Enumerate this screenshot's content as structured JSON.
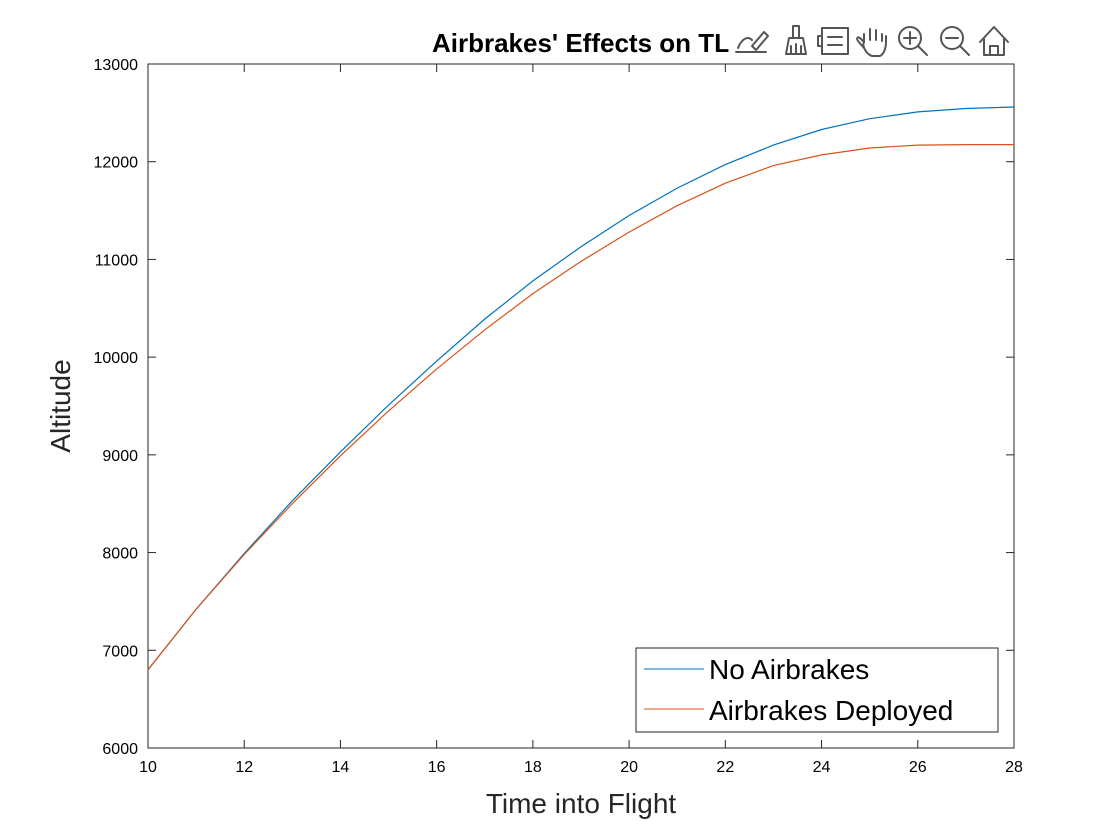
{
  "chart_data": {
    "type": "line",
    "title": "Airbrakes' Effects on TL",
    "xlabel": "Time into Flight",
    "ylabel": "Altitude",
    "xlim": [
      10,
      28
    ],
    "ylim": [
      6000,
      13000
    ],
    "xticks": [
      10,
      12,
      14,
      16,
      18,
      20,
      22,
      24,
      26,
      28
    ],
    "yticks": [
      6000,
      7000,
      8000,
      9000,
      10000,
      11000,
      12000,
      13000
    ],
    "x": [
      10,
      11,
      12,
      13,
      14,
      15,
      16,
      17,
      18,
      19,
      20,
      21,
      22,
      23,
      24,
      25,
      26,
      27,
      28
    ],
    "series": [
      {
        "name": "No Airbrakes",
        "color": "#0072BD",
        "values": [
          6800,
          7420,
          7990,
          8530,
          9030,
          9510,
          9960,
          10390,
          10780,
          11130,
          11450,
          11730,
          11970,
          12170,
          12330,
          12440,
          12510,
          12545,
          12560
        ]
      },
      {
        "name": "Airbrakes Deployed",
        "color": "#D95319",
        "values": [
          6800,
          7420,
          7980,
          8500,
          8990,
          9450,
          9880,
          10280,
          10650,
          10980,
          11280,
          11550,
          11780,
          11960,
          12070,
          12140,
          12170,
          12175,
          12175
        ]
      }
    ],
    "legend_position": "bottom-right",
    "grid": false
  },
  "toolbar": {
    "icons": [
      "data-tips-icon",
      "brush-icon",
      "legend-icon",
      "pan-icon",
      "zoom-in-icon",
      "zoom-out-icon",
      "home-icon"
    ]
  }
}
